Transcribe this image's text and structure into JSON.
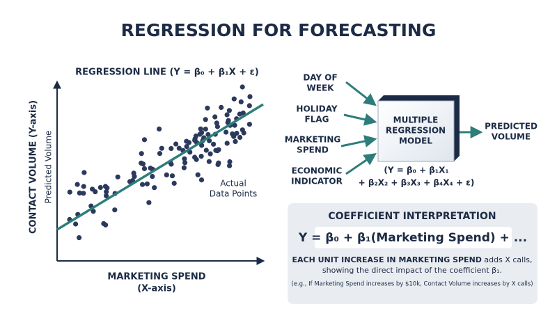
{
  "title": "REGRESSION FOR FORECASTING",
  "scatter": {
    "title": "REGRESSION LINE (Y = β₀ + β₁X + ε)",
    "y_axis_label": "CONTACT VOLUME (Y-axis)",
    "line_label": "Predicted Volume",
    "points_label": [
      "Actual",
      "Data Points"
    ],
    "x_axis_label": [
      "MARKETING SPEND",
      "(X-axis)"
    ]
  },
  "model": {
    "inputs": [
      [
        "DAY OF",
        "WEEK"
      ],
      [
        "HOLIDAY",
        "FLAG"
      ],
      [
        "MARKETING",
        "SPEND"
      ],
      [
        "ECONOMIC",
        "INDICATOR"
      ]
    ],
    "box": [
      "MULTIPLE",
      "REGRESSION",
      "MODEL"
    ],
    "output": [
      "PREDICTED",
      "VOLUME"
    ],
    "formula": [
      "(Y = β₀ + β₁X₁",
      "+ β₂X₂ + β₃X₃ + β₄X₄ + ε)"
    ]
  },
  "interpretation": {
    "title": "COEFFICIENT INTERPRETATION",
    "equation": "Y = β₀ + β₁(Marketing Spend) + ...",
    "line1_bold": "EACH UNIT INCREASE IN MARKETING SPEND",
    "line1_rest": " adds X calls,",
    "line2": "showing the direct impact of the coefficient β₁.",
    "example": "(e.g., If Marketing Spend increases by $10k, Contact Volume increases by X calls)"
  }
}
